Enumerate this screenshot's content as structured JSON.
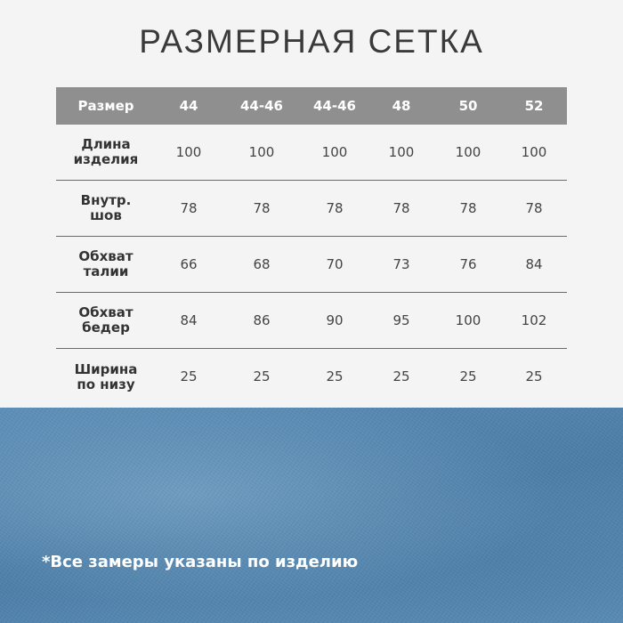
{
  "title": "РАЗМЕРНАЯ СЕТКА",
  "header": [
    "Размер",
    "44",
    "44-46",
    "44-46",
    "48",
    "50",
    "52"
  ],
  "rows": [
    {
      "label": [
        "Длина",
        "изделия"
      ],
      "values": [
        "100",
        "100",
        "100",
        "100",
        "100",
        "100"
      ]
    },
    {
      "label": [
        "Внутр.",
        "шов"
      ],
      "values": [
        "78",
        "78",
        "78",
        "78",
        "78",
        "78"
      ]
    },
    {
      "label": [
        "Обхват",
        "талии"
      ],
      "values": [
        "66",
        "68",
        "70",
        "73",
        "76",
        "84"
      ]
    },
    {
      "label": [
        "Обхват",
        "бедер"
      ],
      "values": [
        "84",
        "86",
        "90",
        "95",
        "100",
        "102"
      ]
    },
    {
      "label": [
        "Ширина",
        "по низу"
      ],
      "values": [
        "25",
        "25",
        "25",
        "25",
        "25",
        "25"
      ]
    }
  ],
  "note": "*Все замеры указаны по изделию",
  "colors": {
    "header_bg": "#8f8f8f",
    "background": "#f4f4f4",
    "denim": "#5a8cb5"
  }
}
